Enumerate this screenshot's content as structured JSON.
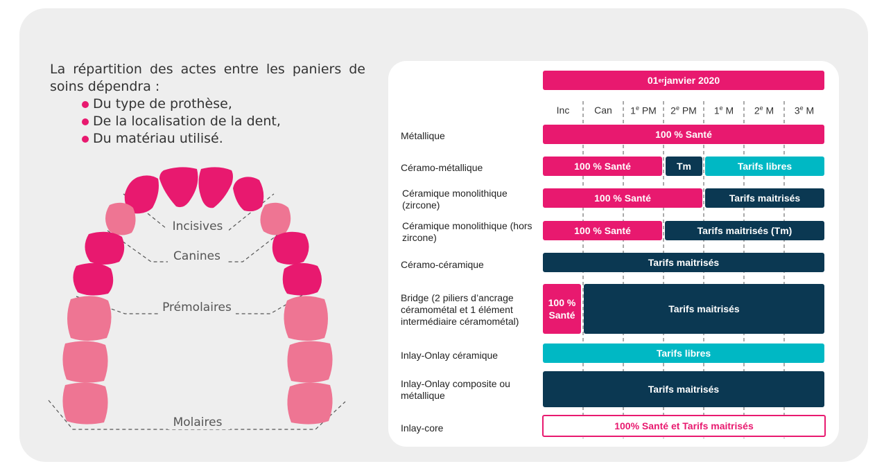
{
  "intro": {
    "lead": "La répartition des actes entre les paniers de soins dépendra :",
    "bullets": [
      "Du type de prothèse,",
      "De la localisation de la dent,",
      "Du matériau utilisé."
    ]
  },
  "diagram": {
    "zones": [
      "Incisives",
      "Canines",
      "Prémolaires",
      "Molaires"
    ],
    "colors": {
      "dark_tooth": "#e8196f",
      "light_tooth": "#ee7593"
    }
  },
  "table": {
    "date": {
      "main": "01",
      "sup": "er",
      "rest": " janvier 2020"
    },
    "columns": [
      {
        "main": "Inc",
        "sup": ""
      },
      {
        "main": "Can",
        "sup": ""
      },
      {
        "main": "1",
        "sup": "e",
        "rest": " PM"
      },
      {
        "main": "2",
        "sup": "e",
        "rest": " PM"
      },
      {
        "main": "1",
        "sup": "e",
        "rest": " M"
      },
      {
        "main": "2",
        "sup": "e",
        "rest": " M"
      },
      {
        "main": "3",
        "sup": "e",
        "rest": " M"
      }
    ],
    "rows": [
      {
        "label": "Métallique",
        "segments": [
          {
            "text": "100 % Santé",
            "kind": "pink"
          }
        ]
      },
      {
        "label": "Céramo-métallique",
        "segments": [
          {
            "text": "100 % Santé",
            "kind": "pink"
          },
          {
            "text": "Tm",
            "kind": "navy"
          },
          {
            "text": "Tarifs libres",
            "kind": "teal"
          }
        ]
      },
      {
        "label": "Céramique monolithique (zircone)",
        "segments": [
          {
            "text": "100 % Santé",
            "kind": "pink"
          },
          {
            "text": "Tarifs maitrisés",
            "kind": "navy"
          }
        ]
      },
      {
        "label": "Céramique monolithique (hors zircone)",
        "segments": [
          {
            "text": "100 % Santé",
            "kind": "pink"
          },
          {
            "text": "Tarifs maitrisés (Tm)",
            "kind": "navy"
          }
        ]
      },
      {
        "label": "Céramo-céramique",
        "segments": [
          {
            "text": "Tarifs maitrisés",
            "kind": "navy"
          }
        ]
      },
      {
        "label": "Bridge (2 piliers d’ancrage céramométal et 1 élément intermédiaire céramométal)",
        "segments": [
          {
            "text": "100 % Santé",
            "kind": "pink"
          },
          {
            "text": "Tarifs maitrisés",
            "kind": "navy"
          }
        ]
      },
      {
        "label": "Inlay-Onlay céramique",
        "segments": [
          {
            "text": "Tarifs libres",
            "kind": "teal"
          }
        ]
      },
      {
        "label": "Inlay-Onlay composite ou métallique",
        "segments": [
          {
            "text": "Tarifs maitrisés",
            "kind": "navy"
          }
        ]
      },
      {
        "label": "Inlay-core",
        "segments": [
          {
            "text": "100% Santé et Tarifs maitrisés",
            "kind": "outline"
          }
        ]
      }
    ],
    "colors": {
      "pink": "#e8196f",
      "navy": "#0b3852",
      "teal": "#00b8c4"
    }
  }
}
